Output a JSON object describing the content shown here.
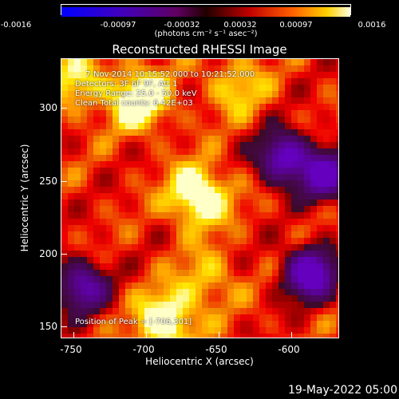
{
  "colorbar": {
    "ticks": [
      "-0.0016",
      "-0.00097",
      "-0.00032",
      "0.00032",
      "0.00097",
      "0.0016"
    ],
    "unit_label": "(photons cm⁻² s⁻¹ asec⁻²)"
  },
  "title": "Reconstructed RHESSI Image",
  "annotations": {
    "time_range": "7-Nov-2014 10:15:52.000 to 10:21:52.000",
    "detectors": "Detectors: 3F 6F 9F, Att 1",
    "energy": "Energy Range: 25.0 - 50.0 keV",
    "counts": "Clean    Total counts: 6.42E+03",
    "peak": "Position of Peak = [-706,301]"
  },
  "x_axis": {
    "label": "Heliocentric X (arcsec)",
    "ticks": [
      "-750",
      "-700",
      "-650",
      "-600"
    ]
  },
  "y_axis": {
    "label": "Heliocentric Y (arcsec)",
    "ticks": [
      "300",
      "250",
      "200",
      "150"
    ]
  },
  "footer_date": "19-May-2022 05:00",
  "image": {
    "x_range": [
      -759,
      -571
    ],
    "y_range": [
      141,
      328
    ],
    "bright_sources": [
      {
        "x": -666,
        "y": 236,
        "level": 1.0
      },
      {
        "x": -706,
        "y": 301,
        "level": 0.95
      },
      {
        "x": -688,
        "y": 152,
        "level": 0.9
      },
      {
        "x": -748,
        "y": 312,
        "level": 0.55
      },
      {
        "x": -660,
        "y": 180,
        "level": 0.45
      },
      {
        "x": -640,
        "y": 310,
        "level": 0.5
      }
    ],
    "negative_regions": [
      {
        "x": -590,
        "y": 184,
        "level": 0.8
      },
      {
        "x": -608,
        "y": 262,
        "level": 0.55
      },
      {
        "x": -580,
        "y": 250,
        "level": 0.5
      },
      {
        "x": -745,
        "y": 175,
        "level": 0.35
      }
    ]
  }
}
